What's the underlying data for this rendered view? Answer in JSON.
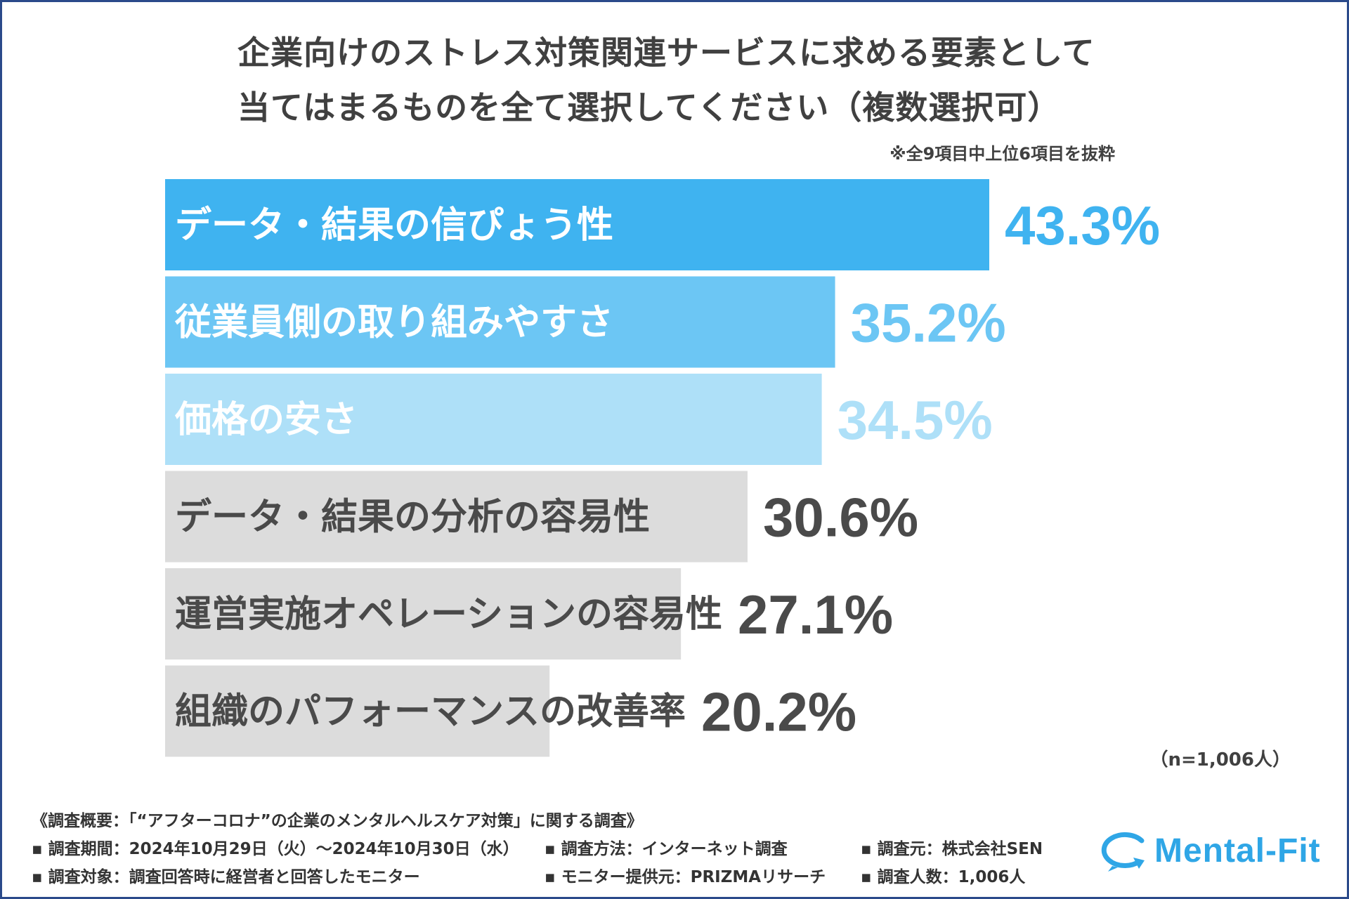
{
  "title": {
    "line1": "企業向けのストレス対策関連サービスに求める要素として",
    "line2": "当てはまるものを全て選択してください（複数選択可）"
  },
  "note": "※全9項目中上位6項目を抜粋",
  "sample_size": "（n=1,006人）",
  "chart_data": {
    "type": "bar",
    "orientation": "horizontal",
    "categories": [
      "データ・結果の信ぴょう性",
      "従業員側の取り組みやすさ",
      "価格の安さ",
      "データ・結果の分析の容易性",
      "運営実施オペレーションの容易性",
      "組織のパフォーマンスの改善率"
    ],
    "values": [
      43.3,
      35.2,
      34.5,
      30.6,
      27.1,
      20.2
    ],
    "value_labels": [
      "43.3%",
      "35.2%",
      "34.5%",
      "30.6%",
      "27.1%",
      "20.2%"
    ],
    "bar_colors": [
      "#3fb3f0",
      "#6cc6f4",
      "#aee0f8",
      "#dcdcdc",
      "#dcdcdc",
      "#dcdcdc"
    ],
    "label_colors": [
      "#ffffff",
      "#ffffff",
      "#ffffff",
      "#4a4a4a",
      "#4a4a4a",
      "#4a4a4a"
    ],
    "value_colors": [
      "#3fb3f0",
      "#6cc6f4",
      "#aee0f8",
      "#4a4a4a",
      "#4a4a4a",
      "#4a4a4a"
    ],
    "xlim": [
      0,
      43.3
    ],
    "grid": false,
    "legend": "none"
  },
  "footer": {
    "overview": "《調査概要：「“アフターコロナ”の企業のメンタルヘルスケア対策」に関する調査》",
    "period": "▪ 調査期間：2024年10月29日（火）〜2024年10月30日（水）",
    "method": "▪ 調査方法：インターネット調査",
    "source": "▪ 調査元：株式会社SEN",
    "target": "▪ 調査対象：調査回答時に経営者と回答したモニター",
    "provider": "▪ モニター提供元：PRIZMAリサーチ",
    "respondents": "▪ 調査人数：1,006人"
  },
  "logo": {
    "text": "Mental-Fit",
    "color": "#2fa6e6",
    "icon": "speech-bubble-arrow-icon"
  },
  "colors": {
    "border": "#2b4a8a",
    "text": "#404040"
  }
}
